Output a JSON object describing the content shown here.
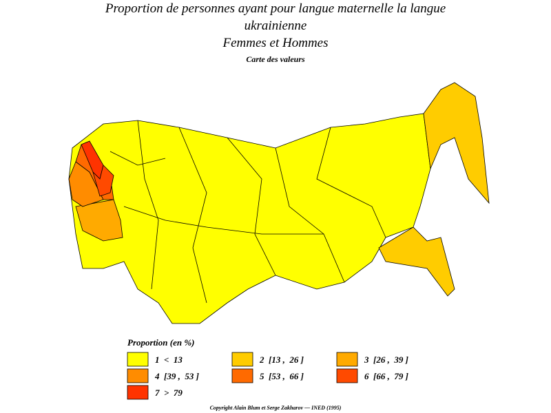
{
  "title": [
    "Proportion de personnes ayant pour langue maternelle la langue",
    "ukrainienne",
    "Femmes et Hommes"
  ],
  "subtitle": "Carte des valeurs",
  "legend": {
    "title": "Proportion (en %)",
    "items": [
      {
        "label": "1  <  13",
        "color": "#ffff00"
      },
      {
        "label": "2  [13 ,  26 ]",
        "color": "#ffcc00"
      },
      {
        "label": "3  [26 ,  39 ]",
        "color": "#ffaa00"
      },
      {
        "label": "4  [39 ,  53 ]",
        "color": "#ff8c00"
      },
      {
        "label": "5  [53 ,  66 ]",
        "color": "#ff6a00"
      },
      {
        "label": "6  [66 ,  79 ]",
        "color": "#ff4a00"
      },
      {
        "label": "7  >  79",
        "color": "#ff3300"
      }
    ]
  },
  "footer": "Copyright Alain Blum et Serge Zakharov  —  INED (1995)"
}
